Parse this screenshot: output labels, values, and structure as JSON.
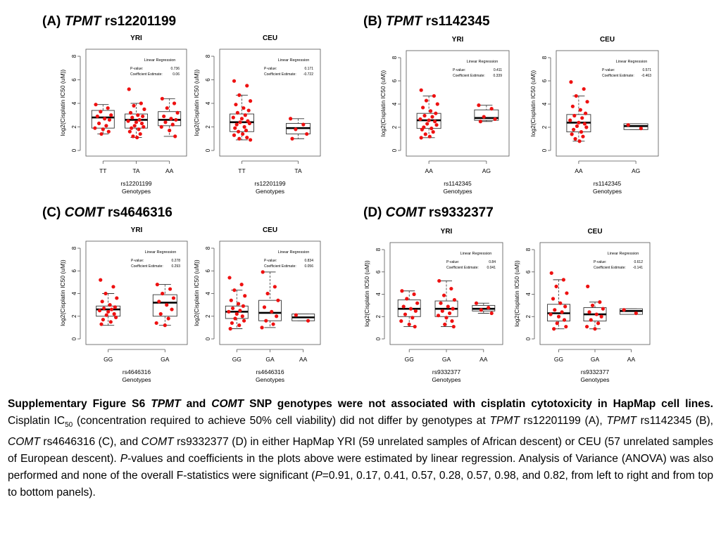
{
  "panels": [
    {
      "letter": "(A)",
      "gene": "TPMT",
      "snp": "rs12201199"
    },
    {
      "letter": "(B)",
      "gene": "TPMT",
      "snp": "rs1142345"
    },
    {
      "letter": "(C)",
      "gene": "COMT",
      "snp": "rs4646316"
    },
    {
      "letter": "(D)",
      "gene": "COMT",
      "snp": "rs9332377"
    }
  ],
  "caption": {
    "title": "Supplementary Figure S6",
    "gene_a": "TPMT",
    "and": "and",
    "gene_b": "COMT",
    "title_rest": "SNP genotypes were not associated with cisplatin cytotoxicity in HapMap cell lines.",
    "s1": "Cisplatin IC",
    "sub": "50",
    "s2": "(concentration required to achieve 50% cell viability) did not differ by genotypes at",
    "g1": "TPMT",
    "s3": "rs12201199 (A),",
    "g2": "TPMT",
    "s4": "rs1142345 (B),",
    "g3": "COMT",
    "s5": "rs4646316 (C), and",
    "g4": "COMT",
    "s6": "rs9332377 (D) in either HapMap YRI (59 unrelated samples of African descent) or CEU (57 unrelated samples of European descent).",
    "p_letter": "P",
    "s7": "-values and coefficients in the plots above were estimated by linear regression. Analysis of Variance (ANOVA) was also performed and none of the overall F-statistics were significant (",
    "p_letter2": "P",
    "s8": "=0.91, 0.17, 0.41, 0.57, 0.28, 0.57, 0.98, and 0.82, from left to right and from top to bottom panels)."
  },
  "chart_data": [
    {
      "type": "box",
      "title": "YRI",
      "xlabel": "rs12201199",
      "xlabel2": "Genotypes",
      "ylabel": "log2(Cisplatin IC50 (uM))",
      "ylim": [
        0,
        8
      ],
      "yticks": [
        0,
        2,
        4,
        6,
        8
      ],
      "legend_title": "Linear Regression",
      "pvalue_label": "P-value:",
      "pvalue": "0.736",
      "coef_label": "Coefficient Estimate:",
      "coef": "0.06",
      "categories": [
        "TT",
        "TA",
        "AA"
      ],
      "boxes": [
        {
          "q1": 1.9,
          "median": 2.8,
          "q3": 3.4,
          "lo": 1.4,
          "hi": 3.9,
          "points": [
            3.9,
            3.6,
            3.3,
            3.0,
            2.9,
            2.7,
            2.6,
            2.3,
            2.1,
            1.9,
            1.8,
            1.6,
            1.4
          ]
        },
        {
          "q1": 1.9,
          "median": 2.6,
          "q3": 3.1,
          "lo": 1.1,
          "hi": 4.0,
          "points": [
            5.2,
            4.0,
            3.8,
            3.5,
            3.2,
            3.0,
            2.9,
            2.8,
            2.6,
            2.5,
            2.4,
            2.3,
            2.1,
            2.0,
            1.9,
            1.8,
            1.6,
            1.4,
            1.2,
            1.1
          ]
        },
        {
          "q1": 2.1,
          "median": 2.6,
          "q3": 3.3,
          "lo": 1.2,
          "hi": 4.4,
          "points": [
            4.4,
            4.0,
            3.6,
            3.2,
            2.9,
            2.7,
            2.6,
            2.4,
            2.2,
            2.0,
            1.7,
            1.2
          ]
        }
      ]
    },
    {
      "type": "box",
      "title": "CEU",
      "xlabel": "rs12201199",
      "xlabel2": "Genotypes",
      "ylabel": "log2(Cisplatin IC50 (uM))",
      "ylim": [
        0,
        8
      ],
      "yticks": [
        0,
        2,
        4,
        6,
        8
      ],
      "legend_title": "Linear Regression",
      "pvalue_label": "P-value:",
      "pvalue": "0.171",
      "coef_label": "Coefficient Estimate:",
      "coef": "-0.722",
      "categories": [
        "TT",
        "TA"
      ],
      "boxes": [
        {
          "q1": 1.6,
          "median": 2.4,
          "q3": 3.1,
          "lo": 0.9,
          "hi": 4.7,
          "points": [
            5.9,
            5.5,
            4.7,
            4.2,
            3.9,
            3.6,
            3.4,
            3.2,
            3.0,
            2.8,
            2.7,
            2.5,
            2.4,
            2.3,
            2.2,
            2.0,
            1.9,
            1.7,
            1.6,
            1.4,
            1.3,
            1.1,
            1.0,
            0.9
          ]
        },
        {
          "q1": 1.4,
          "median": 1.9,
          "q3": 2.3,
          "lo": 1.0,
          "hi": 2.7,
          "points": [
            2.7,
            2.2,
            1.8,
            1.4,
            1.0
          ]
        }
      ]
    },
    {
      "type": "box",
      "title": "YRI",
      "xlabel": "rs1142345",
      "xlabel2": "Genotypes",
      "ylabel": "log2(Cisplatin IC50 (uM))",
      "ylim": [
        0,
        8
      ],
      "yticks": [
        0,
        2,
        4,
        6,
        8
      ],
      "legend_title": "Linear Regression",
      "pvalue_label": "P-value:",
      "pvalue": "0.411",
      "coef_label": "Coefficient Estimate:",
      "coef": "0.339",
      "categories": [
        "AA",
        "AG"
      ],
      "boxes": [
        {
          "q1": 1.9,
          "median": 2.6,
          "q3": 3.2,
          "lo": 1.1,
          "hi": 4.7,
          "points": [
            5.2,
            4.7,
            4.3,
            4.0,
            3.7,
            3.4,
            3.2,
            3.0,
            2.9,
            2.7,
            2.6,
            2.5,
            2.3,
            2.2,
            2.0,
            1.9,
            1.8,
            1.6,
            1.4,
            1.2,
            1.1
          ]
        },
        {
          "q1": 2.6,
          "median": 2.8,
          "q3": 3.5,
          "lo": 2.5,
          "hi": 3.9,
          "points": [
            3.9,
            3.6,
            2.9,
            2.7,
            2.5
          ]
        }
      ]
    },
    {
      "type": "box",
      "title": "CEU",
      "xlabel": "rs1142345",
      "xlabel2": "Genotypes",
      "ylabel": "log2(Cisplatin IC50 (uM))",
      "ylim": [
        0,
        8
      ],
      "yticks": [
        0,
        2,
        4,
        6,
        8
      ],
      "legend_title": "Linear Regression",
      "pvalue_label": "P-value:",
      "pvalue": "0.571",
      "coef_label": "Coefficient Estimate:",
      "coef": "-0.463",
      "categories": [
        "AA",
        "AG"
      ],
      "boxes": [
        {
          "q1": 1.6,
          "median": 2.4,
          "q3": 3.1,
          "lo": 0.8,
          "hi": 4.7,
          "points": [
            5.9,
            5.3,
            4.7,
            4.2,
            3.8,
            3.5,
            3.2,
            3.0,
            2.8,
            2.6,
            2.4,
            2.3,
            2.1,
            2.0,
            1.8,
            1.6,
            1.4,
            1.2,
            1.0,
            0.8
          ]
        },
        {
          "q1": 1.8,
          "median": 2.1,
          "q3": 2.3,
          "lo": 1.8,
          "hi": 2.3,
          "points": [
            2.2,
            1.9
          ]
        }
      ]
    },
    {
      "type": "box",
      "title": "YRI",
      "xlabel": "rs4646316",
      "xlabel2": "Genotypes",
      "ylabel": "log2(Cisplatin IC50 (uM))",
      "ylim": [
        0,
        8
      ],
      "yticks": [
        0,
        2,
        4,
        6,
        8
      ],
      "legend_title": "Linear Regression",
      "pvalue_label": "P-value:",
      "pvalue": "0.278",
      "coef_label": "Coefficient Estimate:",
      "coef": "0.293",
      "categories": [
        "GG",
        "GA"
      ],
      "boxes": [
        {
          "q1": 2.0,
          "median": 2.6,
          "q3": 2.9,
          "lo": 1.2,
          "hi": 4.0,
          "points": [
            5.2,
            4.6,
            4.0,
            3.6,
            3.3,
            3.0,
            2.8,
            2.7,
            2.6,
            2.5,
            2.4,
            2.2,
            2.1,
            1.9,
            1.7,
            1.5,
            1.3
          ]
        },
        {
          "q1": 2.0,
          "median": 3.2,
          "q3": 3.9,
          "lo": 1.2,
          "hi": 4.8,
          "points": [
            4.8,
            4.4,
            4.0,
            3.6,
            3.3,
            3.0,
            2.6,
            2.2,
            1.8,
            1.4,
            1.2
          ]
        }
      ]
    },
    {
      "type": "box",
      "title": "CEU",
      "xlabel": "rs4646316",
      "xlabel2": "Genotypes",
      "ylabel": "log2(Cisplatin IC50 (uM))",
      "ylim": [
        0,
        8
      ],
      "yticks": [
        0,
        2,
        4,
        6,
        8
      ],
      "legend_title": "Linear Regression",
      "pvalue_label": "P-value:",
      "pvalue": "0.834",
      "coef_label": "Coefficient Estimate:",
      "coef": "0.056",
      "categories": [
        "GG",
        "GA",
        "AA"
      ],
      "boxes": [
        {
          "q1": 1.8,
          "median": 2.4,
          "q3": 2.9,
          "lo": 0.9,
          "hi": 4.3,
          "points": [
            5.4,
            4.8,
            4.3,
            3.8,
            3.4,
            3.1,
            2.9,
            2.7,
            2.5,
            2.4,
            2.2,
            2.0,
            1.8,
            1.6,
            1.4,
            1.2,
            0.9
          ]
        },
        {
          "q1": 1.6,
          "median": 2.3,
          "q3": 3.4,
          "lo": 1.0,
          "hi": 5.9,
          "points": [
            5.9,
            4.6,
            4.0,
            3.4,
            2.8,
            2.4,
            2.0,
            1.6,
            1.3,
            1.0
          ]
        },
        {
          "q1": 1.6,
          "median": 1.9,
          "q3": 2.2,
          "lo": 1.6,
          "hi": 2.2,
          "points": [
            2.1,
            1.6
          ]
        }
      ]
    },
    {
      "type": "box",
      "title": "YRI",
      "xlabel": "rs9332377",
      "xlabel2": "Genotypes",
      "ylabel": "log2(Cisplatin IC50 (uM))",
      "ylim": [
        0,
        8
      ],
      "yticks": [
        0,
        2,
        4,
        6,
        8
      ],
      "legend_title": "Linear Regression",
      "pvalue_label": "P-value:",
      "pvalue": "0.84",
      "coef_label": "Coefficient Estimate:",
      "coef": "0.041",
      "categories": [
        "GG",
        "GA",
        "AA"
      ],
      "boxes": [
        {
          "q1": 2.0,
          "median": 2.7,
          "q3": 3.5,
          "lo": 1.1,
          "hi": 4.3,
          "points": [
            4.3,
            4.0,
            3.6,
            3.2,
            2.9,
            2.7,
            2.5,
            2.2,
            1.9,
            1.6,
            1.3,
            1.1
          ]
        },
        {
          "q1": 2.0,
          "median": 2.7,
          "q3": 3.4,
          "lo": 1.1,
          "hi": 5.2,
          "points": [
            5.2,
            4.5,
            3.9,
            3.5,
            3.2,
            2.9,
            2.7,
            2.5,
            2.3,
            2.1,
            1.9,
            1.6,
            1.3,
            1.1
          ]
        },
        {
          "q1": 2.5,
          "median": 2.7,
          "q3": 3.0,
          "lo": 2.3,
          "hi": 3.2,
          "points": [
            3.2,
            2.8,
            2.6,
            2.3
          ]
        }
      ]
    },
    {
      "type": "box",
      "title": "CEU",
      "xlabel": "rs9332377",
      "xlabel2": "Genotypes",
      "ylabel": "log2(Cisplatin IC50 (uM))",
      "ylim": [
        0,
        8
      ],
      "yticks": [
        0,
        2,
        4,
        6,
        8
      ],
      "legend_title": "Linear Regression",
      "pvalue_label": "P-value:",
      "pvalue": "0.612",
      "coef_label": "Coefficient Estimate:",
      "coef": "-0.141",
      "categories": [
        "GG",
        "GA",
        "AA"
      ],
      "boxes": [
        {
          "q1": 1.6,
          "median": 2.3,
          "q3": 3.1,
          "lo": 0.9,
          "hi": 5.3,
          "points": [
            5.9,
            5.3,
            4.7,
            4.1,
            3.6,
            3.2,
            2.9,
            2.6,
            2.4,
            2.2,
            2.0,
            1.7,
            1.4,
            1.1,
            0.9
          ]
        },
        {
          "q1": 1.6,
          "median": 2.2,
          "q3": 2.8,
          "lo": 0.9,
          "hi": 3.3,
          "points": [
            4.7,
            3.3,
            3.0,
            2.7,
            2.4,
            2.2,
            2.0,
            1.7,
            1.4,
            1.1,
            0.9
          ]
        },
        {
          "q1": 2.2,
          "median": 2.5,
          "q3": 2.7,
          "lo": 2.2,
          "hi": 2.7,
          "points": [
            2.6,
            2.3
          ]
        }
      ]
    }
  ]
}
